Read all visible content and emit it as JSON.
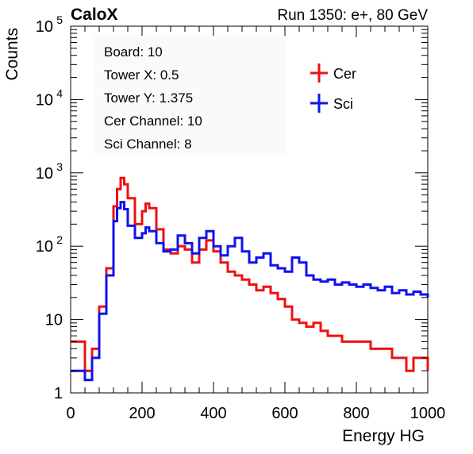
{
  "chart_data": {
    "type": "line",
    "header_left": "CaloX",
    "header_right": "Run 1350: e+, 80 GeV",
    "xlabel": "Energy HG",
    "ylabel": "Counts",
    "xlim": [
      0,
      1000
    ],
    "ylim": [
      1,
      100000
    ],
    "yscale": "log",
    "x_ticks": [
      "0",
      "200",
      "400",
      "600",
      "800",
      "1000"
    ],
    "y_ticks": [
      {
        "value": 1,
        "label": "1"
      },
      {
        "value": 10,
        "label": "10"
      },
      {
        "value": 100,
        "label": "10",
        "exp": "2"
      },
      {
        "value": 1000,
        "label": "10",
        "exp": "3"
      },
      {
        "value": 10000,
        "label": "10",
        "exp": "4"
      },
      {
        "value": 100000,
        "label": "10",
        "exp": "5"
      }
    ],
    "info_box": [
      "Board: 10",
      "Tower X: 0.5",
      "Tower Y: 1.375",
      "Cer Channel: 10",
      "Sci Channel: 8"
    ],
    "legend_position": "top-right",
    "grid": false,
    "series": [
      {
        "name": "Cer",
        "color": "#ee1111",
        "x": [
          0,
          40,
          60,
          80,
          100,
          120,
          130,
          140,
          150,
          160,
          180,
          200,
          210,
          220,
          240,
          260,
          280,
          300,
          320,
          340,
          360,
          380,
          400,
          420,
          440,
          460,
          480,
          500,
          520,
          540,
          560,
          580,
          600,
          620,
          640,
          660,
          680,
          700,
          720,
          740,
          760,
          780,
          800,
          820,
          840,
          860,
          880,
          900,
          920,
          940,
          960,
          980,
          1000
        ],
        "y": [
          5,
          2,
          4,
          15,
          50,
          350,
          600,
          850,
          700,
          450,
          200,
          300,
          380,
          330,
          170,
          90,
          80,
          100,
          90,
          60,
          90,
          120,
          85,
          60,
          45,
          40,
          35,
          30,
          25,
          28,
          23,
          19,
          15,
          10,
          9,
          8,
          9,
          7,
          6,
          6,
          5,
          5,
          5,
          5,
          4,
          4,
          4,
          3,
          3,
          2,
          3,
          3,
          2
        ]
      },
      {
        "name": "Sci",
        "color": "#1111ee",
        "x": [
          0,
          40,
          60,
          80,
          100,
          120,
          130,
          140,
          150,
          160,
          180,
          200,
          210,
          220,
          240,
          260,
          280,
          300,
          320,
          340,
          360,
          380,
          400,
          420,
          440,
          460,
          480,
          500,
          520,
          540,
          560,
          580,
          600,
          620,
          640,
          660,
          680,
          700,
          720,
          740,
          760,
          780,
          800,
          820,
          840,
          860,
          880,
          900,
          920,
          940,
          960,
          980,
          1000
        ],
        "y": [
          2,
          1.5,
          3,
          12,
          40,
          220,
          330,
          400,
          320,
          190,
          130,
          150,
          180,
          160,
          110,
          85,
          90,
          140,
          110,
          80,
          130,
          160,
          100,
          75,
          100,
          130,
          85,
          60,
          70,
          80,
          55,
          50,
          45,
          70,
          60,
          40,
          35,
          33,
          35,
          30,
          32,
          30,
          28,
          30,
          27,
          25,
          28,
          23,
          25,
          22,
          24,
          22,
          20
        ]
      }
    ]
  }
}
